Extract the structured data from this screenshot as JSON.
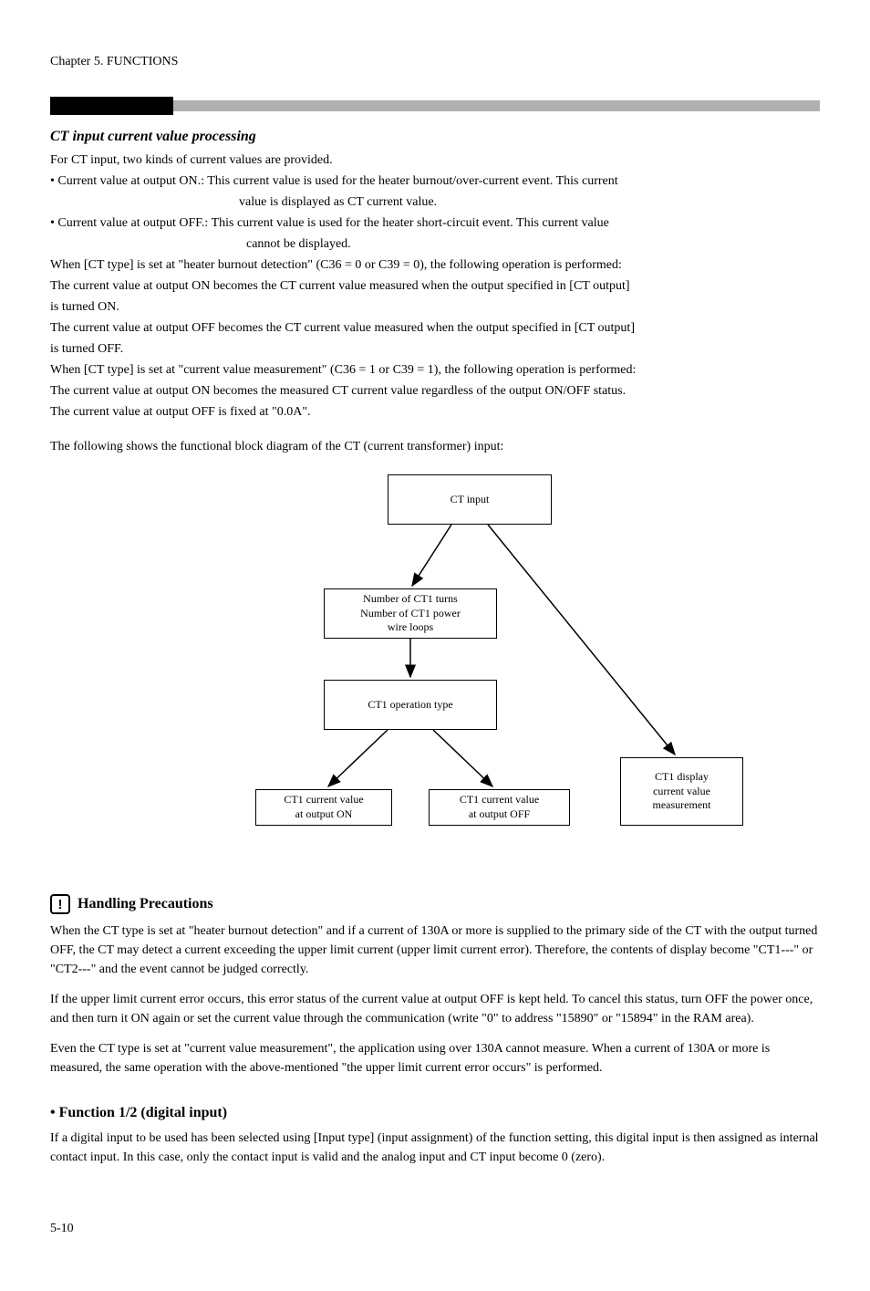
{
  "page_header": "Chapter 5. FUNCTIONS",
  "section_title": "CT input current value processing",
  "paragraphs": {
    "p1": "For CT input, two kinds of current values are provided.",
    "p2": "• Current value at output ON.: This current value is used for the heater burnout/over-current event.  This current",
    "p2b": "value is displayed as CT current value.",
    "p3": "• Current value at output OFF.: This current value is used for the heater short-circuit event.  This current value",
    "p3b": "cannot be displayed.",
    "p4": "When [CT type] is set at \"heater burnout detection\" (C36 = 0 or C39 = 0), the following operation is performed:",
    "p5": "The current value at output ON becomes the CT current value measured when the output specified in [CT output]",
    "p5b": "is turned ON.",
    "p6": "The current value at output OFF becomes the CT current value measured when the output specified in [CT output]",
    "p6b": "is turned OFF.",
    "p7": "When [CT type] is set at \"current value measurement\" (C36 = 1 or C39 = 1), the following operation is performed:",
    "p8": "The current value at output ON becomes the measured CT current value regardless of the output ON/OFF status.",
    "p9": "The current value at output OFF is fixed at \"0.0A\".",
    "p10": "The following shows the functional block diagram of the CT (current transformer) input:"
  },
  "diagram": {
    "box_top": "CT input",
    "box_mid1": "Number of CT1 turns\nNumber of CT1 power\nwire loops",
    "box_mid2": "CT1 operation type",
    "box_left": "CT1 current value\nat output ON",
    "box_right": "CT1 current value\nat output OFF",
    "box_far_right": "CT1 display\ncurrent value\nmeasurement"
  },
  "handling": {
    "title": "Handling Precautions",
    "p1": "When the CT type is set at \"heater burnout detection\" and if a current of 130A or more is supplied to the primary side of the CT with the output turned OFF, the CT may detect a current exceeding the upper limit current (upper limit current error).  Therefore, the contents of display become \"CT1---\" or \"CT2---\" and the event cannot be judged correctly.",
    "p2": "If the upper limit current error occurs, this error status of the current value at output OFF is kept held.  To cancel this status, turn OFF the power once, and then turn it ON again or set the current value through the communication (write \"0\" to address \"15890\" or \"15894\" in the RAM area).",
    "p3": "Even the CT type is set at \"current value measurement\",  the application using over 130A cannot measure.  When a current of 130A or more is measured, the same operation with the above-mentioned \"the upper limit current error occurs\" is performed."
  },
  "function1_title": "• Function 1/2 (digital input)",
  "function1_para": "If a digital input to be used has been selected using [Input type] (input assignment) of the function setting, this digital input is then assigned as internal contact input.  In this case, only the contact input is valid and the analog input and CT input become 0 (zero).",
  "page_number": "5-10"
}
